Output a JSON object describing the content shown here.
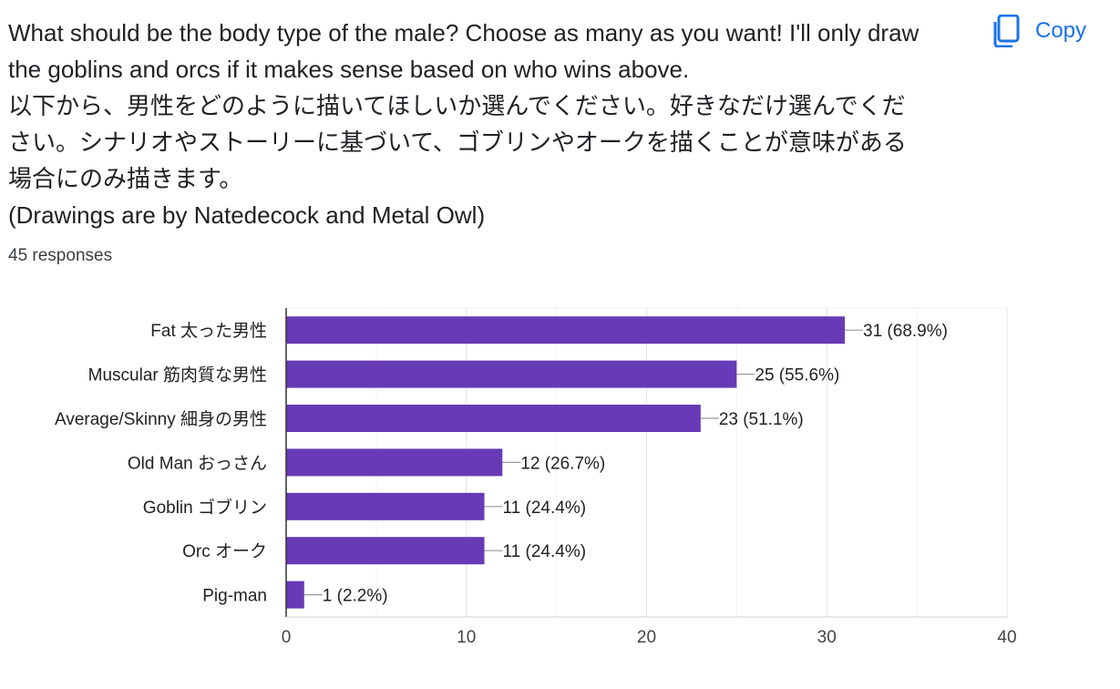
{
  "question": {
    "lines": [
      "What should be the body type of the male? Choose as many as you want! I'll only draw",
      "the goblins and orcs if it makes sense based on who wins above.",
      "以下から、男性をどのように描いてほしいか選んでください。好きなだけ選んでくだ",
      "さい。シナリオやストーリーに基づいて、ゴブリンやオークを描くことが意味がある",
      "場合にのみ描きます。",
      "(Drawings are by Natedecock and Metal Owl)"
    ],
    "responses": "45 responses"
  },
  "copy_button": {
    "label": "Copy",
    "icon": "copy-icon"
  },
  "colors": {
    "bar": "#673ab7",
    "accent": "#1a73e8"
  },
  "chart_data": {
    "type": "bar",
    "orientation": "horizontal",
    "categories": [
      "Fat 太った男性",
      "Muscular 筋肉質な男性",
      "Average/Skinny 細身の男性",
      "Old Man おっさん",
      "Goblin ゴブリン",
      "Orc オーク",
      "Pig-man"
    ],
    "values": [
      31,
      25,
      23,
      12,
      11,
      11,
      1
    ],
    "data_labels": [
      "31 (68.9%)",
      "25 (55.6%)",
      "23 (51.1%)",
      "12 (26.7%)",
      "11 (24.4%)",
      "11 (24.4%)",
      "1 (2.2%)"
    ],
    "xlim": [
      0,
      40
    ],
    "x_ticks": [
      "0",
      "10",
      "20",
      "30",
      "40"
    ],
    "grid": true
  }
}
